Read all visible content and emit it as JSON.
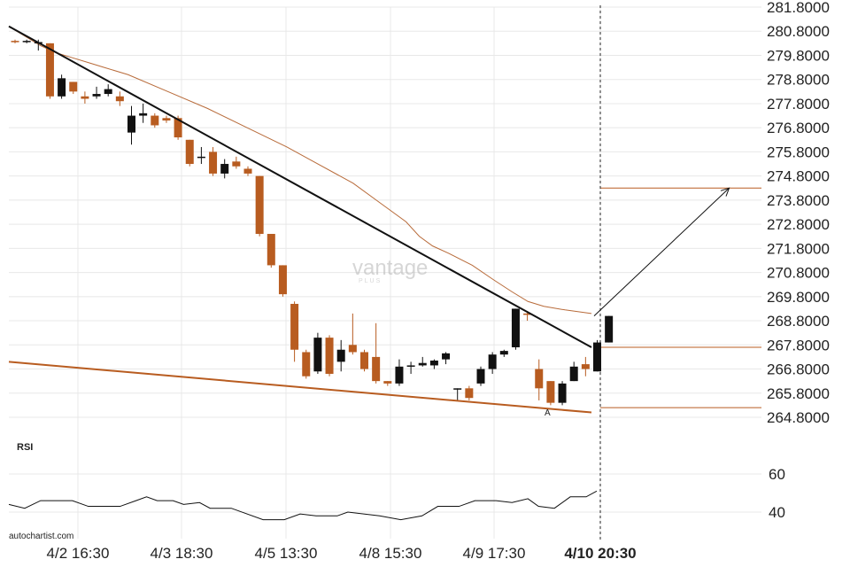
{
  "chart_data": {
    "type": "candlestick",
    "title": "",
    "price_axis": {
      "ticks": [
        "281.8000",
        "280.8000",
        "279.8000",
        "278.8000",
        "277.8000",
        "276.8000",
        "275.8000",
        "274.8000",
        "273.8000",
        "272.8000",
        "271.8000",
        "270.8000",
        "269.8000",
        "268.8000",
        "267.8000",
        "266.8000",
        "265.8000",
        "264.8000"
      ],
      "range": [
        264.0,
        282.0
      ]
    },
    "time_axis": {
      "labels": [
        "4/2 16:30",
        "4/3 18:30",
        "4/5 13:30",
        "4/8 15:30",
        "4/9 17:30",
        "4/10 20:30"
      ],
      "bold_label": "4/10 20:30"
    },
    "candles": [
      {
        "o": 280.4,
        "h": 280.45,
        "l": 280.3,
        "c": 280.35,
        "color": "orange"
      },
      {
        "o": 280.4,
        "h": 280.45,
        "l": 280.3,
        "c": 280.35,
        "color": "black"
      },
      {
        "o": 280.35,
        "h": 280.45,
        "l": 280.0,
        "c": 280.3,
        "color": "black"
      },
      {
        "o": 280.3,
        "h": 280.3,
        "l": 278.0,
        "c": 278.1,
        "color": "orange"
      },
      {
        "o": 278.1,
        "h": 279.0,
        "l": 278.0,
        "c": 278.85,
        "color": "black"
      },
      {
        "o": 278.7,
        "h": 278.7,
        "l": 278.2,
        "c": 278.3,
        "color": "orange"
      },
      {
        "o": 278.1,
        "h": 278.3,
        "l": 277.8,
        "c": 278.0,
        "color": "orange"
      },
      {
        "o": 278.1,
        "h": 278.5,
        "l": 278.0,
        "c": 278.2,
        "color": "black"
      },
      {
        "o": 278.2,
        "h": 278.6,
        "l": 278.1,
        "c": 278.4,
        "color": "black"
      },
      {
        "o": 278.1,
        "h": 278.3,
        "l": 277.7,
        "c": 277.9,
        "color": "orange"
      },
      {
        "o": 276.6,
        "h": 277.7,
        "l": 276.1,
        "c": 277.3,
        "color": "black"
      },
      {
        "o": 277.3,
        "h": 277.8,
        "l": 277.0,
        "c": 277.4,
        "color": "black"
      },
      {
        "o": 277.3,
        "h": 277.4,
        "l": 276.8,
        "c": 276.9,
        "color": "orange"
      },
      {
        "o": 277.2,
        "h": 277.3,
        "l": 277.0,
        "c": 277.1,
        "color": "orange"
      },
      {
        "o": 277.2,
        "h": 277.3,
        "l": 276.3,
        "c": 276.4,
        "color": "orange"
      },
      {
        "o": 276.3,
        "h": 276.3,
        "l": 275.2,
        "c": 275.3,
        "color": "orange"
      },
      {
        "o": 275.6,
        "h": 276.0,
        "l": 275.3,
        "c": 275.6,
        "color": "black"
      },
      {
        "o": 275.8,
        "h": 276.0,
        "l": 274.8,
        "c": 274.9,
        "color": "orange"
      },
      {
        "o": 274.9,
        "h": 275.5,
        "l": 274.7,
        "c": 275.3,
        "color": "black"
      },
      {
        "o": 275.4,
        "h": 275.6,
        "l": 275.1,
        "c": 275.2,
        "color": "orange"
      },
      {
        "o": 275.1,
        "h": 275.2,
        "l": 274.8,
        "c": 274.9,
        "color": "orange"
      },
      {
        "o": 274.8,
        "h": 274.8,
        "l": 272.3,
        "c": 272.4,
        "color": "orange"
      },
      {
        "o": 272.4,
        "h": 272.4,
        "l": 271.0,
        "c": 271.1,
        "color": "orange"
      },
      {
        "o": 271.1,
        "h": 271.1,
        "l": 269.8,
        "c": 269.9,
        "color": "orange"
      },
      {
        "o": 269.5,
        "h": 269.6,
        "l": 267.1,
        "c": 267.6,
        "color": "orange"
      },
      {
        "o": 267.5,
        "h": 267.6,
        "l": 266.4,
        "c": 266.5,
        "color": "orange"
      },
      {
        "o": 266.7,
        "h": 268.3,
        "l": 266.6,
        "c": 268.1,
        "color": "black"
      },
      {
        "o": 268.1,
        "h": 268.2,
        "l": 266.5,
        "c": 266.6,
        "color": "orange"
      },
      {
        "o": 267.1,
        "h": 268.0,
        "l": 266.7,
        "c": 267.6,
        "color": "black"
      },
      {
        "o": 267.8,
        "h": 269.1,
        "l": 267.4,
        "c": 267.5,
        "color": "orange"
      },
      {
        "o": 267.5,
        "h": 267.6,
        "l": 266.7,
        "c": 266.8,
        "color": "orange"
      },
      {
        "o": 267.3,
        "h": 268.7,
        "l": 266.2,
        "c": 266.3,
        "color": "orange"
      },
      {
        "o": 266.3,
        "h": 266.3,
        "l": 266.1,
        "c": 266.2,
        "color": "orange"
      },
      {
        "o": 266.2,
        "h": 267.2,
        "l": 266.1,
        "c": 266.9,
        "color": "black"
      },
      {
        "o": 266.9,
        "h": 267.1,
        "l": 266.6,
        "c": 266.95,
        "color": "black"
      },
      {
        "o": 266.95,
        "h": 267.3,
        "l": 266.9,
        "c": 267.05,
        "color": "black"
      },
      {
        "o": 266.95,
        "h": 267.2,
        "l": 266.8,
        "c": 267.15,
        "color": "black"
      },
      {
        "o": 267.2,
        "h": 267.5,
        "l": 267.0,
        "c": 267.45,
        "color": "black"
      },
      {
        "o": 266.0,
        "h": 266.0,
        "l": 265.5,
        "c": 266.0,
        "color": "black"
      },
      {
        "o": 266.0,
        "h": 266.1,
        "l": 265.5,
        "c": 265.6,
        "color": "orange"
      },
      {
        "o": 266.2,
        "h": 266.9,
        "l": 266.1,
        "c": 266.8,
        "color": "black"
      },
      {
        "o": 266.8,
        "h": 267.5,
        "l": 266.6,
        "c": 267.4,
        "color": "black"
      },
      {
        "o": 267.4,
        "h": 267.6,
        "l": 267.3,
        "c": 267.55,
        "color": "black"
      },
      {
        "o": 267.7,
        "h": 269.3,
        "l": 267.6,
        "c": 269.3,
        "color": "black"
      },
      {
        "o": 269.1,
        "h": 269.2,
        "l": 268.8,
        "c": 269.05,
        "color": "orange"
      },
      {
        "o": 266.8,
        "h": 267.2,
        "l": 265.5,
        "c": 266.0,
        "color": "orange"
      },
      {
        "o": 266.3,
        "h": 266.3,
        "l": 265.3,
        "c": 265.4,
        "color": "orange"
      },
      {
        "o": 265.4,
        "h": 266.3,
        "l": 265.3,
        "c": 266.2,
        "color": "black"
      },
      {
        "o": 266.3,
        "h": 267.1,
        "l": 266.3,
        "c": 266.9,
        "color": "black"
      },
      {
        "o": 266.8,
        "h": 267.3,
        "l": 266.5,
        "c": 267.0,
        "color": "orange"
      },
      {
        "o": 266.7,
        "h": 268.0,
        "l": 266.7,
        "c": 267.9,
        "color": "black"
      },
      {
        "o": 267.9,
        "h": 269.0,
        "l": 267.9,
        "c": 269.0,
        "color": "black"
      }
    ],
    "moving_average": [
      [
        0,
        281.0
      ],
      [
        6,
        280.6
      ],
      [
        12,
        280.2
      ],
      [
        18,
        279.9
      ],
      [
        24,
        279.7
      ],
      [
        30,
        279.5
      ],
      [
        36,
        279.3
      ],
      [
        45,
        279.0
      ],
      [
        60,
        278.3
      ],
      [
        75,
        277.6
      ],
      [
        90,
        276.8
      ],
      [
        105,
        276.0
      ],
      [
        115,
        275.4
      ],
      [
        130,
        274.5
      ],
      [
        140,
        273.7
      ],
      [
        150,
        272.9
      ],
      [
        155,
        272.3
      ],
      [
        160,
        271.9
      ],
      [
        166,
        271.6
      ],
      [
        175,
        271.1
      ],
      [
        183,
        270.5
      ],
      [
        190,
        270.0
      ],
      [
        196,
        269.6
      ],
      [
        202,
        269.4
      ],
      [
        210,
        269.25
      ],
      [
        220,
        269.1
      ]
    ],
    "upper_trendline": {
      "from": [
        0,
        281.0
      ],
      "to": [
        220,
        267.7
      ]
    },
    "lower_trendline": {
      "from": [
        0,
        267.1
      ],
      "to": [
        220,
        265.0
      ]
    },
    "horizontal_levels": [
      274.3,
      267.7,
      265.2
    ],
    "arrow": {
      "from": [
        221,
        269.0
      ],
      "to": [
        272,
        274.3
      ]
    },
    "pattern_point_label": "A",
    "rsi": {
      "label": "RSI",
      "ticks": [
        "60",
        "40"
      ],
      "range": [
        30,
        70
      ],
      "values": [
        [
          0,
          44
        ],
        [
          6,
          42
        ],
        [
          12,
          46
        ],
        [
          24,
          46
        ],
        [
          30,
          43
        ],
        [
          36,
          43
        ],
        [
          42,
          43
        ],
        [
          48,
          46
        ],
        [
          52,
          48
        ],
        [
          56,
          46
        ],
        [
          62,
          46
        ],
        [
          66,
          44
        ],
        [
          72,
          45
        ],
        [
          76,
          42
        ],
        [
          84,
          42
        ],
        [
          96,
          36
        ],
        [
          104,
          36
        ],
        [
          110,
          39
        ],
        [
          116,
          38
        ],
        [
          124,
          38
        ],
        [
          128,
          40
        ],
        [
          134,
          39
        ],
        [
          140,
          38
        ],
        [
          148,
          36
        ],
        [
          156,
          38
        ],
        [
          162,
          43
        ],
        [
          170,
          43
        ],
        [
          176,
          46
        ],
        [
          184,
          46
        ],
        [
          190,
          45
        ],
        [
          196,
          47
        ],
        [
          200,
          43
        ],
        [
          206,
          42
        ],
        [
          212,
          48
        ],
        [
          218,
          48
        ],
        [
          222,
          51
        ]
      ]
    }
  },
  "branding": {
    "watermark": "vantage",
    "watermark_sub": "PLUS",
    "source": "autochartist.com"
  },
  "colors": {
    "orange": "#b85c20",
    "black": "#111111",
    "ma": "#b86b3a",
    "grid": "#e8e8e8"
  }
}
